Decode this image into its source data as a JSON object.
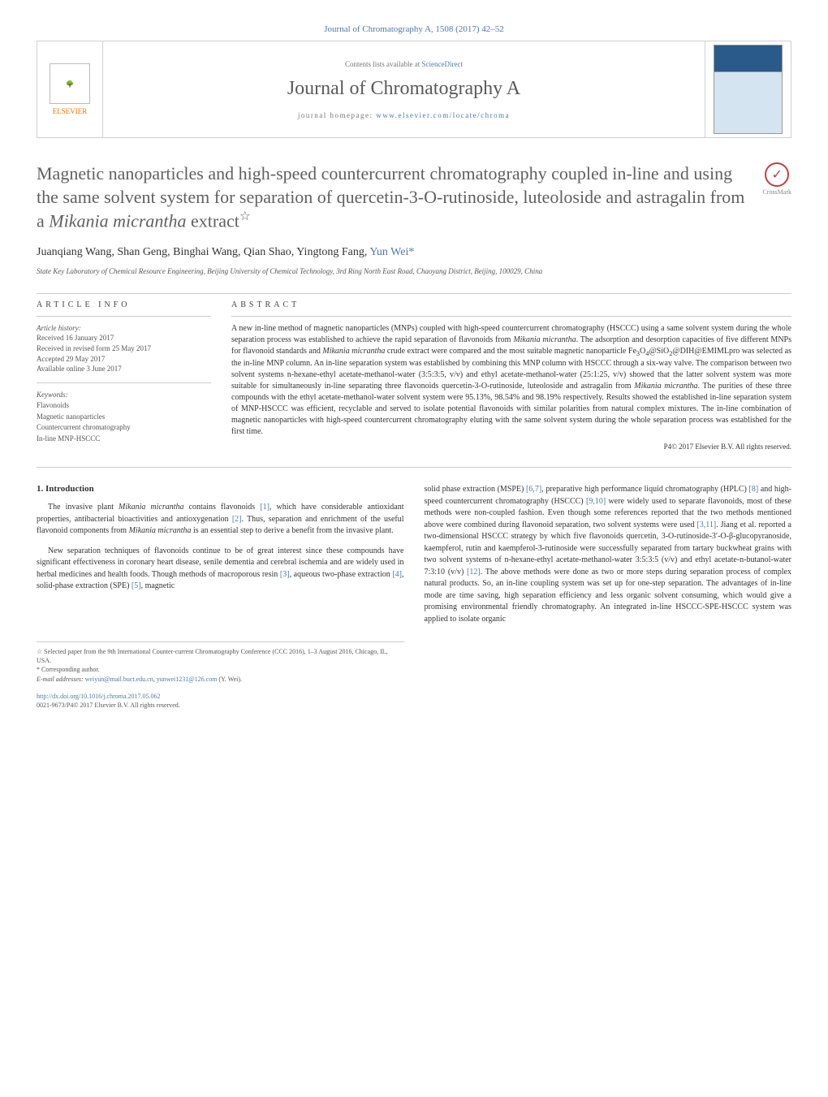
{
  "citation": "Journal of Chromatography A, 1508 (2017) 42–52",
  "banner": {
    "publisher": "ELSEVIER",
    "contents_prefix": "Contents lists available at ",
    "contents_link": "ScienceDirect",
    "journal_name": "Journal of Chromatography A",
    "homepage_prefix": "journal homepage: ",
    "homepage_link": "www.elsevier.com/locate/chroma"
  },
  "title_html": "Magnetic nanoparticles and high-speed countercurrent chromatography coupled in-line and using the same solvent system for separation of quercetin-3-O-rutinoside, luteoloside and astragalin from a <em>Mikania micrantha</em> extract<sup>☆</sup>",
  "crossmark_label": "CrossMark",
  "authors_html": "Juanqiang Wang, Shan Geng, Binghai Wang, Qian Shao, Yingtong Fang, <span class='corresponding'>Yun Wei*</span>",
  "affiliation": "State Key Laboratory of Chemical Resource Engineering, Beijing University of Chemical Technology, 3rd Ring North East Road, Chaoyang District, Beijing, 100029, China",
  "article_info_heading": "ARTICLE INFO",
  "history": {
    "heading": "Article history:",
    "received": "Received 16 January 2017",
    "revised": "Received in revised form 25 May 2017",
    "accepted": "Accepted 29 May 2017",
    "online": "Available online 3 June 2017"
  },
  "keywords": {
    "heading": "Keywords:",
    "items": [
      "Flavonoids",
      "Magnetic nanoparticles",
      "Countercurrent chromatography",
      "In-line MNP-HSCCC"
    ]
  },
  "abstract_heading": "ABSTRACT",
  "abstract_html": "A new in-line method of magnetic nanoparticles (MNPs) coupled with high-speed countercurrent chromatography (HSCCC) using a same solvent system during the whole separation process was established to achieve the rapid separation of flavonoids from <em>Mikania micrantha</em>. The adsorption and desorption capacities of five different MNPs for flavonoid standards and <em>Mikania micrantha</em> crude extract were compared and the most suitable magnetic nanoparticle Fe<sub>3</sub>O<sub>4</sub>@SiO<sub>2</sub>@DIH@EMIMLpro was selected as the in-line MNP column. An in-line separation system was established by combining this MNP column with HSCCC through a six-way valve. The comparison between two solvent systems n-hexane-ethyl acetate-methanol-water (3:5:3:5, v/v) and ethyl acetate-methanol-water (25:1:25, v/v) showed that the latter solvent system was more suitable for simultaneously in-line separating three flavonoids quercetin-3-O-rutinoside, luteoloside and astragalin from <em>Mikania micrantha</em>. The purities of these three compounds with the ethyl acetate-methanol-water solvent system were 95.13%, 98.54% and 98.19% respectively. Results showed the established in-line separation system of MNP-HSCCC was efficient, recyclable and served to isolate potential flavonoids with similar polarities from natural complex mixtures. The in-line combination of magnetic nanoparticles with high-speed countercurrent chromatography eluting with the same solvent system during the whole separation process was established for the first time.",
  "copyright": "P4© 2017 Elsevier B.V. All rights reserved.",
  "intro": {
    "heading": "1. Introduction",
    "p1_html": "The invasive plant <em>Mikania micrantha</em> contains flavonoids <span class='ref'>[1]</span>, which have considerable antioxidant properties, antibacterial bioactivities and antioxygenation <span class='ref'>[2]</span>. Thus, separation and enrichment of the useful flavonoid components from <em>Mikania micrantha</em> is an essential step to derive a benefit from the invasive plant.",
    "p2_html": "New separation techniques of flavonoids continue to be of great interest since these compounds have significant effectiveness in coronary heart disease, senile dementia and cerebral ischemia and are widely used in herbal medicines and health foods. Though methods of macroporous resin <span class='ref'>[3]</span>, aqueous two-phase extraction <span class='ref'>[4]</span>, solid-phase extraction (SPE) <span class='ref'>[5]</span>, magnetic",
    "p3_html": "solid phase extraction (MSPE) <span class='ref'>[6,7]</span>, preparative high performance liquid chromatography (HPLC) <span class='ref'>[8]</span> and high-speed countercurrent chromatography (HSCCC) <span class='ref'>[9,10]</span> were widely used to separate flavonoids, most of these methods were non-coupled fashion. Even though some references reported that the two methods mentioned above were combined during flavonoid separation, two solvent systems were used <span class='ref'>[3,11]</span>. Jiang et al. reported a two-dimensional HSCCC strategy by which five flavonoids quercetin, 3-O-rutinoside-3′-O-β-glucopyranoside, kaempferol, rutin and kaempferol-3-rutinoside were successfully separated from tartary buckwheat grains with two solvent systems of n-hexane-ethyl acetate-methanol-water 3:5:3:5 (v/v) and ethyl acetate-n-butanol-water 7:3:10 (v/v) <span class='ref'>[12]</span>. The above methods were done as two or more steps during separation process of complex natural products. So, an in-line coupling system was set up for one-step separation. The advantages of in-line mode are time saving, high separation efficiency and less organic solvent consuming, which would give a promising environmental friendly chromatography. An integrated in-line HSCCC-SPE-HSCCC system was applied to isolate organic"
  },
  "footnotes": {
    "conf": "☆ Selected paper from the 9th International Counter-current Chromatography Conference (CCC 2016), 1–3 August 2016, Chicago, IL, USA.",
    "corr_label": "* Corresponding author.",
    "email_label": "E-mail addresses:",
    "email1": "weiyun@mail.buct.edu.cn",
    "email2": "yunwei1231@126.com",
    "email_suffix": "(Y. Wei)."
  },
  "doi": {
    "url": "http://dx.doi.org/10.1016/j.chroma.2017.05.062",
    "issn": "0021-9673/P4© 2017 Elsevier B.V. All rights reserved."
  },
  "colors": {
    "link": "#4a7ba8",
    "elsevier": "#ee7600",
    "text": "#333333",
    "heading_gray": "#606060",
    "border": "#d0d0d0"
  },
  "typography": {
    "title_fontsize": 22,
    "journal_name_fontsize": 24,
    "body_fontsize": 10,
    "abstract_fontsize": 10,
    "footnote_fontsize": 8
  }
}
